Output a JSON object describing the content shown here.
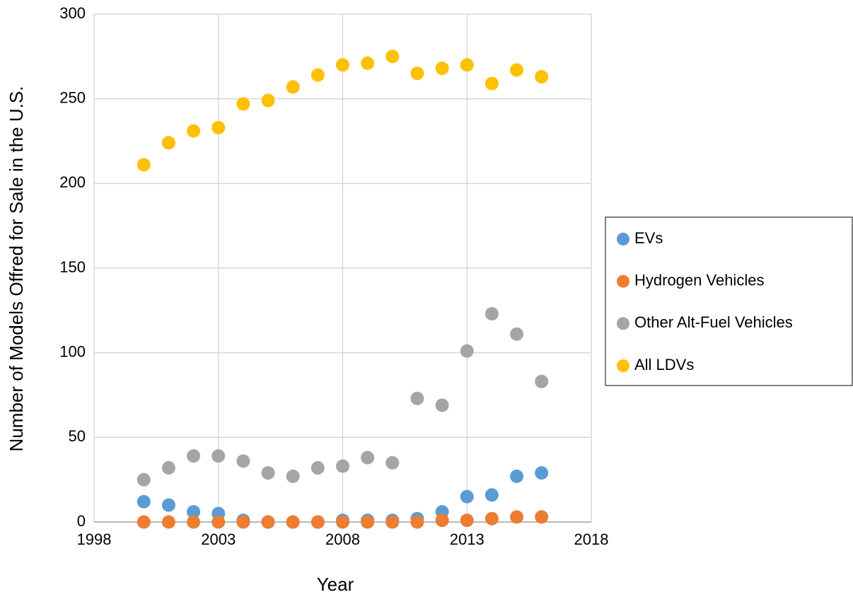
{
  "chart_data": {
    "type": "scatter",
    "x_label": "Year",
    "y_label": "Number of Models Offred for Sale in the U.S.",
    "x": [
      2000,
      2001,
      2002,
      2003,
      2004,
      2005,
      2006,
      2007,
      2008,
      2009,
      2010,
      2011,
      2012,
      2013,
      2014,
      2015,
      2016
    ],
    "series": [
      {
        "name": "EVs",
        "color": "#5b9bd5",
        "values": [
          12,
          10,
          6,
          5,
          1,
          0,
          0,
          0,
          1,
          1,
          1,
          2,
          6,
          15,
          16,
          27,
          29
        ]
      },
      {
        "name": "Hydrogen Vehicles",
        "color": "#ed7d31",
        "values": [
          0,
          0,
          0,
          0,
          0,
          0,
          0,
          0,
          0,
          0,
          0,
          0,
          1,
          1,
          2,
          3,
          3
        ]
      },
      {
        "name": "Other Alt-Fuel Vehicles",
        "color": "#a5a5a5",
        "values": [
          25,
          32,
          39,
          39,
          36,
          29,
          27,
          32,
          33,
          38,
          35,
          73,
          69,
          101,
          123,
          111,
          83
        ]
      },
      {
        "name": "All LDVs",
        "color": "#ffc000",
        "values": [
          211,
          224,
          231,
          233,
          247,
          249,
          257,
          264,
          270,
          271,
          275,
          265,
          268,
          270,
          259,
          267,
          263
        ]
      }
    ],
    "xlim": [
      1998,
      2018
    ],
    "xticks": [
      1998,
      2003,
      2008,
      2013,
      2018
    ],
    "ylim": [
      0,
      300
    ],
    "yticks": [
      0,
      50,
      100,
      150,
      200,
      250,
      300
    ],
    "grid": true,
    "legend": "right"
  }
}
